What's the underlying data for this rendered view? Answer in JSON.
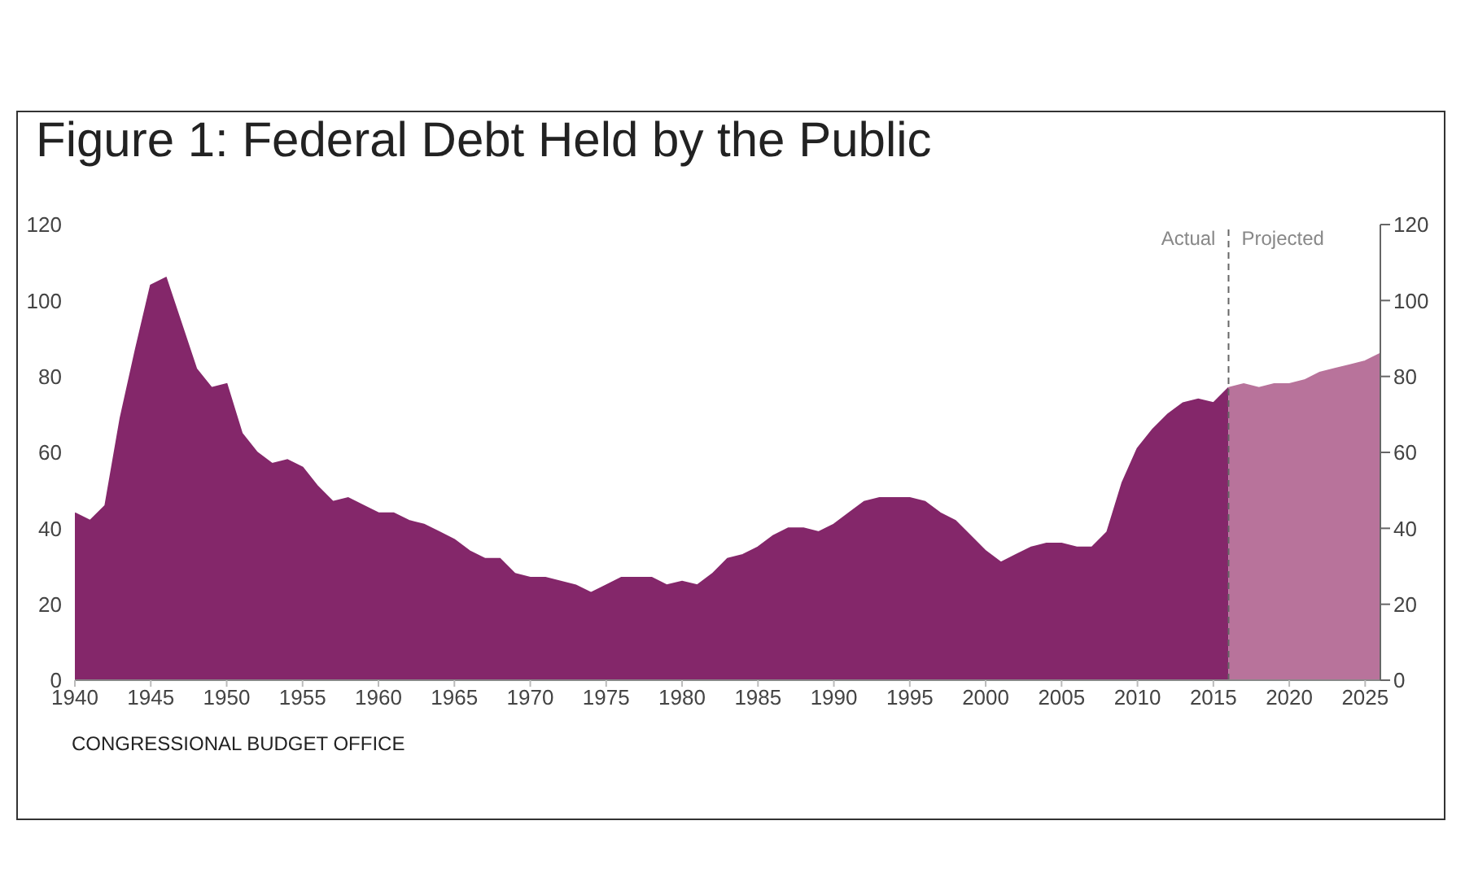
{
  "chart_data": {
    "type": "area",
    "title": "Figure 1: Federal Debt Held by the Public",
    "series": [
      {
        "color": "#84276a",
        "x": [
          1940,
          1941,
          1942,
          1943,
          1944,
          1945,
          1946,
          1947,
          1948,
          1949,
          1950,
          1951,
          1952,
          1953,
          1954,
          1955,
          1956,
          1957,
          1958,
          1959,
          1960,
          1961,
          1962,
          1963,
          1964,
          1965,
          1966,
          1967,
          1968,
          1969,
          1970,
          1971,
          1972,
          1973,
          1974,
          1975,
          1976,
          1977,
          1978,
          1979,
          1980,
          1981,
          1982,
          1983,
          1984,
          1985,
          1986,
          1987,
          1988,
          1989,
          1990,
          1991,
          1992,
          1993,
          1994,
          1995,
          1996,
          1997,
          1998,
          1999,
          2000,
          2001,
          2002,
          2003,
          2004,
          2005,
          2006,
          2007,
          2008,
          2009,
          2010,
          2011,
          2012,
          2013,
          2014,
          2015,
          2016
        ],
        "values": [
          44,
          42,
          46,
          69,
          87,
          104,
          106,
          94,
          82,
          77,
          78,
          65,
          60,
          57,
          58,
          56,
          51,
          47,
          48,
          46,
          44,
          44,
          42,
          41,
          39,
          37,
          34,
          32,
          32,
          28,
          27,
          27,
          26,
          25,
          23,
          25,
          27,
          27,
          27,
          25,
          26,
          25,
          28,
          32,
          33,
          35,
          38,
          40,
          40,
          39,
          41,
          44,
          47,
          48,
          48,
          48,
          47,
          44,
          42,
          38,
          34,
          31,
          33,
          35,
          36,
          36,
          35,
          35,
          39,
          52,
          61,
          66,
          70,
          73,
          74,
          73,
          77
        ]
      },
      {
        "color": "#b8739b",
        "x": [
          2016,
          2017,
          2018,
          2019,
          2020,
          2021,
          2022,
          2023,
          2024,
          2025,
          2026
        ],
        "values": [
          77,
          78,
          77,
          78,
          78,
          79,
          81,
          82,
          83,
          84,
          86
        ]
      }
    ],
    "xlim": [
      1940,
      2026
    ],
    "xticks": [
      1940,
      1945,
      1950,
      1955,
      1960,
      1965,
      1970,
      1975,
      1980,
      1985,
      1990,
      1995,
      2000,
      2005,
      2010,
      2015,
      2020,
      2025
    ],
    "ylim": [
      0,
      120
    ],
    "yticks": [
      0,
      20,
      40,
      60,
      80,
      100,
      120
    ],
    "y2lim": [
      0,
      120
    ],
    "y2ticks": [
      0,
      20,
      40,
      60,
      80,
      100,
      120
    ],
    "grid": false,
    "ref_lines": [
      {
        "axis": "x",
        "value": 2016,
        "color": "#666666",
        "line_style": "dashed"
      }
    ],
    "annotations": [
      {
        "text": "Actual",
        "x": 2016,
        "y": 120
      },
      {
        "text": "Projected",
        "x": 2016,
        "y": 120
      },
      "CONGRESSIONAL BUDGET OFFICE"
    ]
  }
}
